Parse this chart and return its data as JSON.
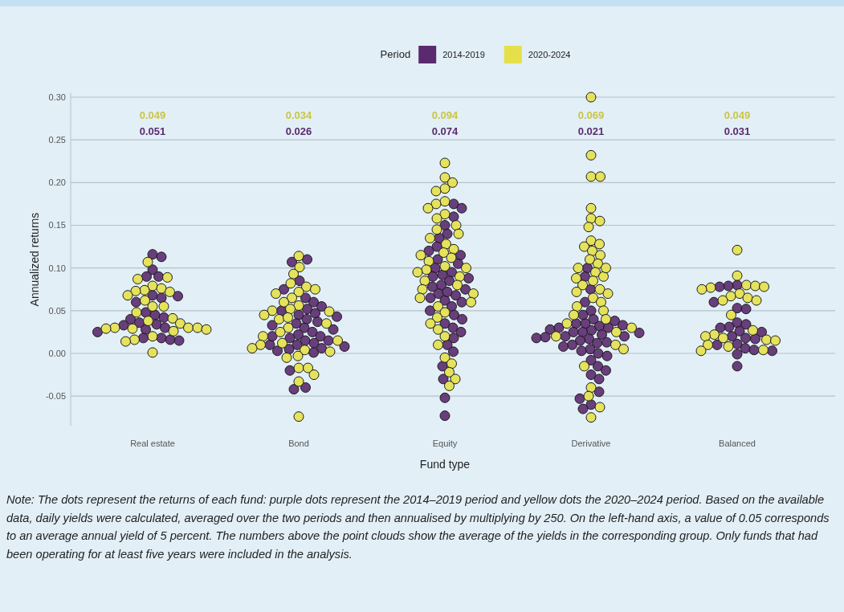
{
  "chart_data": {
    "type": "scatter",
    "xlabel": "Fund type",
    "ylabel": "Annualized returns",
    "legend_title": "Period",
    "legend": "top",
    "grid": "y",
    "marker": "circle",
    "categories": [
      "Real estate",
      "Bond",
      "Equity",
      "Derivative",
      "Balanced"
    ],
    "ylim": [
      -0.085,
      0.305
    ],
    "yticks": [
      -0.05,
      {
        "value": 0,
        "label": "0.00"
      },
      0.05,
      {
        "value": 0.1,
        "label": "0.10"
      },
      0.15,
      {
        "value": 0.2,
        "label": "0.20"
      },
      0.25,
      {
        "value": 0.3,
        "label": "0.30"
      }
    ],
    "series": [
      {
        "name": "2014-2019",
        "color": "#5b2a6e",
        "x": [
          "Real estate",
          "Real estate",
          "Real estate",
          "Real estate",
          "Real estate",
          "Real estate",
          "Real estate",
          "Real estate",
          "Real estate",
          "Real estate",
          "Real estate",
          "Real estate",
          "Real estate",
          "Real estate",
          "Real estate",
          "Real estate",
          "Real estate",
          "Real estate",
          "Real estate",
          "Real estate",
          "Real estate",
          "Real estate",
          "Real estate",
          "Bond",
          "Bond",
          "Bond",
          "Bond",
          "Bond",
          "Bond",
          "Bond",
          "Bond",
          "Bond",
          "Bond",
          "Bond",
          "Bond",
          "Bond",
          "Bond",
          "Bond",
          "Bond",
          "Bond",
          "Bond",
          "Bond",
          "Bond",
          "Bond",
          "Bond",
          "Bond",
          "Bond",
          "Bond",
          "Bond",
          "Bond",
          "Bond",
          "Bond",
          "Bond",
          "Bond",
          "Bond",
          "Bond",
          "Bond",
          "Bond",
          "Bond",
          "Equity",
          "Equity",
          "Equity",
          "Equity",
          "Equity",
          "Equity",
          "Equity",
          "Equity",
          "Equity",
          "Equity",
          "Equity",
          "Equity",
          "Equity",
          "Equity",
          "Equity",
          "Equity",
          "Equity",
          "Equity",
          "Equity",
          "Equity",
          "Equity",
          "Equity",
          "Equity",
          "Equity",
          "Equity",
          "Equity",
          "Equity",
          "Equity",
          "Equity",
          "Equity",
          "Equity",
          "Equity",
          "Equity",
          "Equity",
          "Equity",
          "Equity",
          "Equity",
          "Equity",
          "Equity",
          "Equity",
          "Derivative",
          "Derivative",
          "Derivative",
          "Derivative",
          "Derivative",
          "Derivative",
          "Derivative",
          "Derivative",
          "Derivative",
          "Derivative",
          "Derivative",
          "Derivative",
          "Derivative",
          "Derivative",
          "Derivative",
          "Derivative",
          "Derivative",
          "Derivative",
          "Derivative",
          "Derivative",
          "Derivative",
          "Derivative",
          "Derivative",
          "Derivative",
          "Derivative",
          "Derivative",
          "Derivative",
          "Derivative",
          "Derivative",
          "Derivative",
          "Derivative",
          "Derivative",
          "Derivative",
          "Derivative",
          "Derivative",
          "Derivative",
          "Derivative",
          "Derivative",
          "Derivative",
          "Derivative",
          "Derivative",
          "Derivative",
          "Derivative",
          "Balanced",
          "Balanced",
          "Balanced",
          "Balanced",
          "Balanced",
          "Balanced",
          "Balanced",
          "Balanced",
          "Balanced",
          "Balanced",
          "Balanced",
          "Balanced",
          "Balanced",
          "Balanced",
          "Balanced",
          "Balanced",
          "Balanced",
          "Balanced",
          "Balanced",
          "Balanced",
          "Balanced",
          "Balanced"
        ],
        "values": [
          0.116,
          0.113,
          0.098,
          0.09,
          0.09,
          0.067,
          0.065,
          0.06,
          0.045,
          0.042,
          0.04,
          0.036,
          0.034,
          0.033,
          0.03,
          0.028,
          0.025,
          0.018,
          0.016,
          0.015,
          0.018,
          0.068,
          0.048,
          0.11,
          0.107,
          0.085,
          0.075,
          0.065,
          0.06,
          0.055,
          0.05,
          0.047,
          0.045,
          0.043,
          0.04,
          0.037,
          0.035,
          0.03,
          0.028,
          0.025,
          0.022,
          0.02,
          0.018,
          0.015,
          0.012,
          0.01,
          0.008,
          0.006,
          0.005,
          0.003,
          0.001,
          0.01,
          0.02,
          0.033,
          -0.02,
          -0.04,
          -0.042,
          0.052,
          0.015,
          0.175,
          0.17,
          0.16,
          0.15,
          0.14,
          0.135,
          0.125,
          0.12,
          0.115,
          0.11,
          0.105,
          0.1,
          0.095,
          0.09,
          0.088,
          0.085,
          0.08,
          0.075,
          0.07,
          0.068,
          0.065,
          0.062,
          0.06,
          0.055,
          0.05,
          0.045,
          0.04,
          0.035,
          0.03,
          0.025,
          0.018,
          0.01,
          0.002,
          -0.015,
          -0.03,
          -0.052,
          -0.073,
          0.072,
          0.078,
          0.092,
          0.1,
          0.09,
          0.075,
          0.06,
          0.05,
          0.045,
          0.04,
          0.038,
          0.035,
          0.033,
          0.032,
          0.03,
          0.028,
          0.027,
          0.025,
          0.024,
          0.022,
          0.02,
          0.019,
          0.018,
          0.017,
          0.015,
          0.013,
          0.012,
          0.01,
          0.008,
          0.005,
          0.003,
          0,
          -0.003,
          -0.008,
          -0.015,
          -0.02,
          -0.025,
          -0.03,
          -0.045,
          -0.053,
          -0.06,
          -0.065,
          0.035,
          0.025,
          0.02,
          0.03,
          0.08,
          0.079,
          0.078,
          0.06,
          0.053,
          0.052,
          0.036,
          0.034,
          0.031,
          0.03,
          0.026,
          0.025,
          0.02,
          0.018,
          0.017,
          0.01,
          0.006,
          0.004,
          0.003,
          -0.001,
          -0.015,
          0.011
        ]
      },
      {
        "name": "2020-2024",
        "color": "#e5e04a",
        "x": [
          "Real estate",
          "Real estate",
          "Real estate",
          "Real estate",
          "Real estate",
          "Real estate",
          "Real estate",
          "Real estate",
          "Real estate",
          "Real estate",
          "Real estate",
          "Real estate",
          "Real estate",
          "Real estate",
          "Real estate",
          "Real estate",
          "Real estate",
          "Real estate",
          "Real estate",
          "Real estate",
          "Real estate",
          "Real estate",
          "Real estate",
          "Real estate",
          "Real estate",
          "Real estate",
          "Real estate",
          "Bond",
          "Bond",
          "Bond",
          "Bond",
          "Bond",
          "Bond",
          "Bond",
          "Bond",
          "Bond",
          "Bond",
          "Bond",
          "Bond",
          "Bond",
          "Bond",
          "Bond",
          "Bond",
          "Bond",
          "Bond",
          "Bond",
          "Bond",
          "Bond",
          "Bond",
          "Bond",
          "Bond",
          "Bond",
          "Bond",
          "Bond",
          "Bond",
          "Bond",
          "Bond",
          "Bond",
          "Bond",
          "Bond",
          "Bond",
          "Equity",
          "Equity",
          "Equity",
          "Equity",
          "Equity",
          "Equity",
          "Equity",
          "Equity",
          "Equity",
          "Equity",
          "Equity",
          "Equity",
          "Equity",
          "Equity",
          "Equity",
          "Equity",
          "Equity",
          "Equity",
          "Equity",
          "Equity",
          "Equity",
          "Equity",
          "Equity",
          "Equity",
          "Equity",
          "Equity",
          "Equity",
          "Equity",
          "Equity",
          "Equity",
          "Equity",
          "Equity",
          "Equity",
          "Equity",
          "Equity",
          "Equity",
          "Equity",
          "Equity",
          "Equity",
          "Equity",
          "Equity",
          "Equity",
          "Equity",
          "Derivative",
          "Derivative",
          "Derivative",
          "Derivative",
          "Derivative",
          "Derivative",
          "Derivative",
          "Derivative",
          "Derivative",
          "Derivative",
          "Derivative",
          "Derivative",
          "Derivative",
          "Derivative",
          "Derivative",
          "Derivative",
          "Derivative",
          "Derivative",
          "Derivative",
          "Derivative",
          "Derivative",
          "Derivative",
          "Derivative",
          "Derivative",
          "Derivative",
          "Derivative",
          "Derivative",
          "Derivative",
          "Derivative",
          "Derivative",
          "Derivative",
          "Derivative",
          "Derivative",
          "Derivative",
          "Derivative",
          "Derivative",
          "Derivative",
          "Derivative",
          "Derivative",
          "Derivative",
          "Derivative",
          "Derivative",
          "Balanced",
          "Balanced",
          "Balanced",
          "Balanced",
          "Balanced",
          "Balanced",
          "Balanced",
          "Balanced",
          "Balanced",
          "Balanced",
          "Balanced",
          "Balanced",
          "Balanced",
          "Balanced",
          "Balanced",
          "Balanced",
          "Balanced",
          "Balanced",
          "Balanced",
          "Balanced",
          "Balanced",
          "Balanced",
          "Balanced"
        ],
        "values": [
          0.107,
          0.087,
          0.089,
          0.079,
          0.076,
          0.074,
          0.073,
          0.072,
          0.068,
          0.062,
          0.055,
          0.055,
          0.041,
          0.038,
          0.035,
          0.03,
          0.03,
          0.03,
          0.029,
          0.028,
          0.026,
          0.02,
          0.016,
          0.014,
          0.001,
          0.029,
          0.048,
          0.114,
          0.101,
          0.093,
          0.082,
          0.078,
          0.075,
          0.072,
          0.07,
          0.065,
          0.06,
          0.056,
          0.052,
          0.05,
          0.049,
          0.045,
          0.04,
          0.035,
          0.03,
          0.025,
          0.02,
          0.015,
          0.01,
          0.006,
          0.004,
          0.002,
          -0.003,
          -0.005,
          -0.017,
          -0.017,
          -0.025,
          -0.033,
          -0.074,
          0.042,
          0.012,
          0.223,
          0.206,
          0.2,
          0.193,
          0.19,
          0.178,
          0.175,
          0.17,
          0.163,
          0.158,
          0.15,
          0.145,
          0.14,
          0.135,
          0.128,
          0.122,
          0.118,
          0.112,
          0.108,
          0.102,
          0.098,
          0.095,
          0.09,
          0.085,
          0.08,
          0.075,
          0.07,
          0.065,
          0.06,
          0.055,
          0.048,
          0.042,
          0.035,
          0.028,
          0.02,
          0.01,
          -0.005,
          -0.012,
          -0.022,
          -0.03,
          -0.038,
          0.1,
          0.115,
          0.3,
          0.232,
          0.207,
          0.207,
          0.17,
          0.158,
          0.155,
          0.148,
          0.132,
          0.128,
          0.125,
          0.12,
          0.115,
          0.11,
          0.105,
          0.1,
          0.095,
          0.09,
          0.085,
          0.08,
          0.075,
          0.07,
          0.065,
          0.06,
          0.055,
          0.05,
          0.045,
          0.04,
          0.035,
          0.03,
          0.025,
          0.02,
          0.01,
          0.005,
          -0.015,
          -0.04,
          -0.05,
          -0.063,
          -0.075,
          0.072,
          0.088,
          0.1,
          0.121,
          0.091,
          0.08,
          0.079,
          0.078,
          0.077,
          0.075,
          0.07,
          0.067,
          0.065,
          0.062,
          0.062,
          0.045,
          0.027,
          0.022,
          0.02,
          0.018,
          0.016,
          0.015,
          0.01,
          0.008,
          0.004,
          0.003
        ]
      }
    ],
    "annotations": [
      "0.049",
      "0.051",
      "0.034",
      "0.026",
      "0.094",
      "0.074",
      "0.069",
      "0.021",
      "0.049",
      "0.031",
      "Note: The dots represent the returns of each fund: purple dots represent the 2014–2019 period and yellow dots the 2020–2024 period. Based on the available data, daily yields were calculated, averaged over the two periods and then annualised by multiplying by 250. On the left-hand axis, a value of 0.05 corresponds to an average annual yield of 5 percent. The numbers above the point clouds show the average of the yields in the corresponding group. Only funds that had been operating for at least five years were included in the analysis."
    ]
  }
}
